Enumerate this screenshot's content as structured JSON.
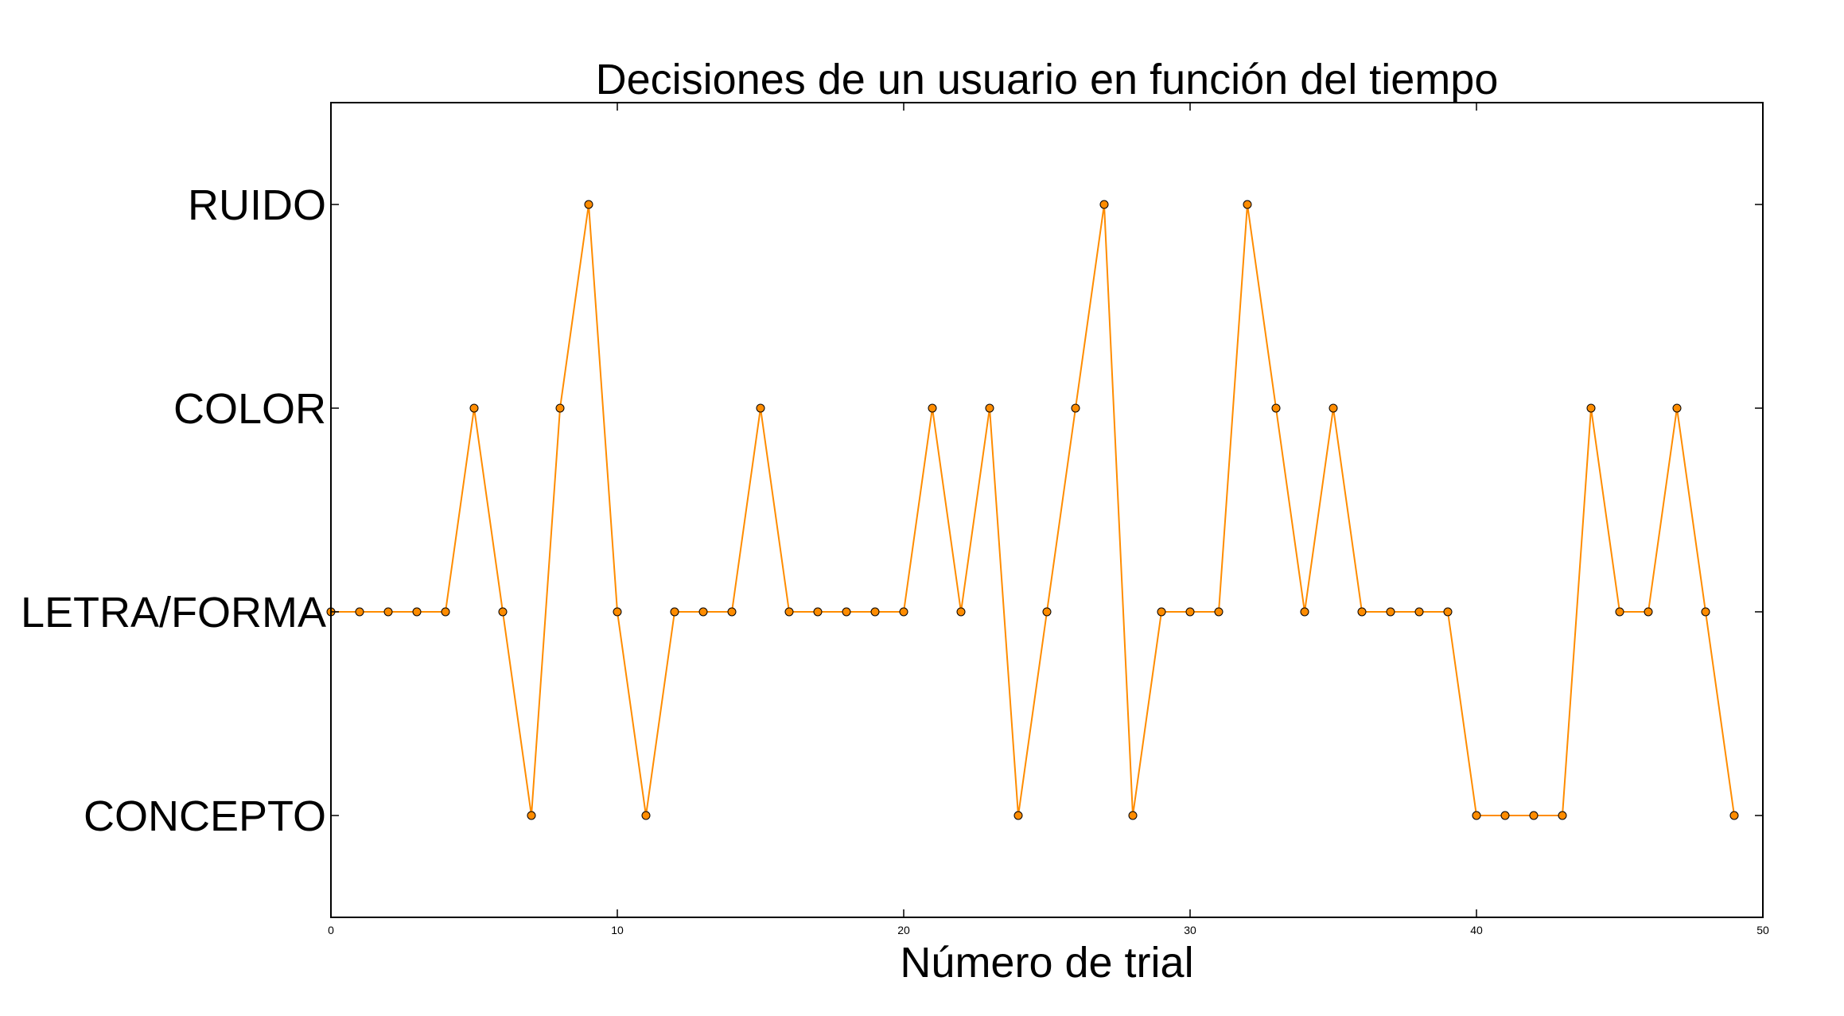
{
  "chart_data": {
    "type": "line",
    "title": "Decisiones de un usuario en función del tiempo",
    "xlabel": "Número de trial",
    "ylabel": "",
    "xlim": [
      0,
      50
    ],
    "ylim": [
      -0.5,
      3.5
    ],
    "x_ticks": [
      0,
      10,
      20,
      30,
      40,
      50
    ],
    "x_tick_labels": [
      "0",
      "10",
      "20",
      "30",
      "40",
      "50"
    ],
    "y_ticks": [
      0,
      1,
      2,
      3
    ],
    "y_tick_labels": [
      "CONCEPTO",
      "LETRA/FORMA",
      "COLOR",
      "RUIDO"
    ],
    "grid": false,
    "series": [
      {
        "color": "#ff8c00",
        "marker_fill": "#ff8c00",
        "marker_edge": "#000000",
        "x": [
          0,
          1,
          2,
          3,
          4,
          5,
          6,
          7,
          8,
          9,
          10,
          11,
          12,
          13,
          14,
          15,
          16,
          17,
          18,
          19,
          20,
          21,
          22,
          23,
          24,
          25,
          26,
          27,
          28,
          29,
          30,
          31,
          32,
          33,
          34,
          35,
          36,
          37,
          38,
          39,
          40,
          41,
          42,
          43,
          44,
          45,
          46,
          47,
          48,
          49
        ],
        "y": [
          1,
          1,
          1,
          1,
          1,
          2,
          1,
          0,
          2,
          3,
          1,
          0,
          1,
          1,
          1,
          2,
          1,
          1,
          1,
          1,
          1,
          2,
          1,
          2,
          0,
          1,
          2,
          3,
          0,
          1,
          1,
          1,
          3,
          2,
          1,
          2,
          1,
          1,
          1,
          1,
          0,
          0,
          0,
          0,
          2,
          1,
          1,
          2,
          1,
          0
        ]
      }
    ]
  }
}
